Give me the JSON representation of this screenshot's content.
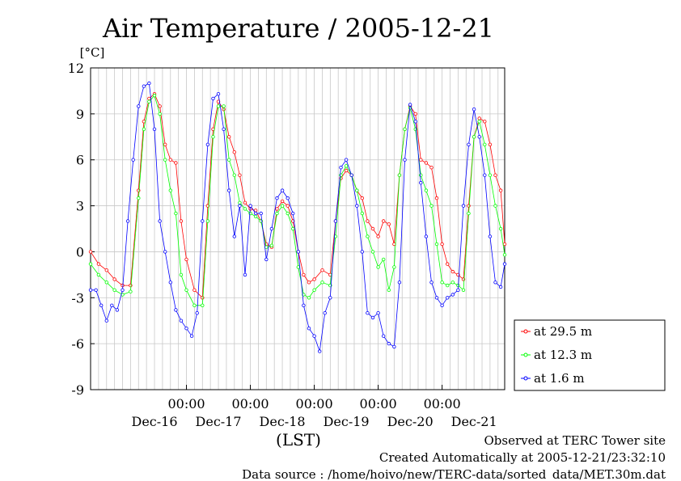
{
  "chart_data": {
    "type": "line",
    "title": "Air Temperature / 2005-12-21",
    "unit_label": "[°C]",
    "xlabel": "(LST)",
    "ylim": [
      -9,
      12
    ],
    "yticks": [
      -9,
      -6,
      -3,
      0,
      3,
      6,
      9,
      12
    ],
    "x_range": [
      "2005-12-15T12:00",
      "2005-12-21T23:30"
    ],
    "x_time_labels": [
      "00:00",
      "00:00",
      "00:00",
      "00:00",
      "00:00"
    ],
    "x_time_positions": [
      "2005-12-17T00:00",
      "2005-12-18T00:00",
      "2005-12-19T00:00",
      "2005-12-20T00:00",
      "2005-12-21T00:00"
    ],
    "x_day_labels": [
      "Dec-16",
      "Dec-17",
      "Dec-18",
      "Dec-19",
      "Dec-20",
      "Dec-21"
    ],
    "x_day_positions": [
      "2005-12-16T12:00",
      "2005-12-17T12:00",
      "2005-12-18T12:00",
      "2005-12-19T12:00",
      "2005-12-20T12:00",
      "2005-12-21T12:00"
    ],
    "grid": true,
    "legend_position": "right",
    "series": [
      {
        "name": "at 29.5 m",
        "color": "#ff0000",
        "x": [
          "2005-12-15T12:00",
          "2005-12-15T15:00",
          "2005-12-15T18:00",
          "2005-12-15T21:00",
          "2005-12-16T00:00",
          "2005-12-16T03:00",
          "2005-12-16T06:00",
          "2005-12-16T08:00",
          "2005-12-16T10:00",
          "2005-12-16T12:00",
          "2005-12-16T14:00",
          "2005-12-16T16:00",
          "2005-12-16T18:00",
          "2005-12-16T20:00",
          "2005-12-16T22:00",
          "2005-12-17T00:00",
          "2005-12-17T03:00",
          "2005-12-17T06:00",
          "2005-12-17T08:00",
          "2005-12-17T10:00",
          "2005-12-17T12:00",
          "2005-12-17T14:00",
          "2005-12-17T16:00",
          "2005-12-17T18:00",
          "2005-12-17T20:00",
          "2005-12-17T22:00",
          "2005-12-18T00:00",
          "2005-12-18T02:00",
          "2005-12-18T04:00",
          "2005-12-18T06:00",
          "2005-12-18T08:00",
          "2005-12-18T10:00",
          "2005-12-18T12:00",
          "2005-12-18T14:00",
          "2005-12-18T16:00",
          "2005-12-18T18:00",
          "2005-12-18T20:00",
          "2005-12-18T22:00",
          "2005-12-19T00:00",
          "2005-12-19T03:00",
          "2005-12-19T06:00",
          "2005-12-19T08:00",
          "2005-12-19T10:00",
          "2005-12-19T12:00",
          "2005-12-19T14:00",
          "2005-12-19T16:00",
          "2005-12-19T18:00",
          "2005-12-19T20:00",
          "2005-12-19T22:00",
          "2005-12-20T00:00",
          "2005-12-20T02:00",
          "2005-12-20T04:00",
          "2005-12-20T06:00",
          "2005-12-20T08:00",
          "2005-12-20T10:00",
          "2005-12-20T12:00",
          "2005-12-20T14:00",
          "2005-12-20T16:00",
          "2005-12-20T18:00",
          "2005-12-20T20:00",
          "2005-12-20T22:00",
          "2005-12-21T00:00",
          "2005-12-21T02:00",
          "2005-12-21T04:00",
          "2005-12-21T06:00",
          "2005-12-21T08:00",
          "2005-12-21T10:00",
          "2005-12-21T12:00",
          "2005-12-21T14:00",
          "2005-12-21T16:00",
          "2005-12-21T18:00",
          "2005-12-21T20:00",
          "2005-12-21T22:00",
          "2005-12-21T23:30"
        ],
        "y": [
          0.0,
          -0.8,
          -1.2,
          -1.8,
          -2.2,
          -2.2,
          4.0,
          8.5,
          10.0,
          10.3,
          9.5,
          7.0,
          6.0,
          5.8,
          2.0,
          -0.5,
          -2.5,
          -3.0,
          3.0,
          8.0,
          9.8,
          9.3,
          7.5,
          6.5,
          5.0,
          3.2,
          2.8,
          2.7,
          2.0,
          0.5,
          0.3,
          2.8,
          3.3,
          3.0,
          2.0,
          0.0,
          -1.5,
          -2.0,
          -1.8,
          -1.2,
          -1.5,
          2.0,
          4.8,
          5.3,
          5.0,
          4.0,
          3.5,
          2.0,
          1.5,
          1.0,
          2.0,
          1.8,
          0.5,
          5.0,
          8.0,
          9.5,
          9.0,
          6.0,
          5.8,
          5.5,
          3.5,
          0.5,
          -0.8,
          -1.3,
          -1.5,
          -1.8,
          3.0,
          7.5,
          8.7,
          8.5,
          7.0,
          5.0,
          4.0,
          0.5
        ]
      },
      {
        "name": "at 12.3 m",
        "color": "#00ff00",
        "x": [
          "2005-12-15T12:00",
          "2005-12-15T15:00",
          "2005-12-15T18:00",
          "2005-12-15T21:00",
          "2005-12-16T00:00",
          "2005-12-16T03:00",
          "2005-12-16T06:00",
          "2005-12-16T08:00",
          "2005-12-16T10:00",
          "2005-12-16T12:00",
          "2005-12-16T14:00",
          "2005-12-16T16:00",
          "2005-12-16T18:00",
          "2005-12-16T20:00",
          "2005-12-16T22:00",
          "2005-12-17T00:00",
          "2005-12-17T03:00",
          "2005-12-17T06:00",
          "2005-12-17T08:00",
          "2005-12-17T10:00",
          "2005-12-17T12:00",
          "2005-12-17T14:00",
          "2005-12-17T16:00",
          "2005-12-17T18:00",
          "2005-12-17T20:00",
          "2005-12-17T22:00",
          "2005-12-18T00:00",
          "2005-12-18T02:00",
          "2005-12-18T04:00",
          "2005-12-18T06:00",
          "2005-12-18T08:00",
          "2005-12-18T10:00",
          "2005-12-18T12:00",
          "2005-12-18T14:00",
          "2005-12-18T16:00",
          "2005-12-18T18:00",
          "2005-12-18T20:00",
          "2005-12-18T22:00",
          "2005-12-19T00:00",
          "2005-12-19T03:00",
          "2005-12-19T06:00",
          "2005-12-19T08:00",
          "2005-12-19T10:00",
          "2005-12-19T12:00",
          "2005-12-19T14:00",
          "2005-12-19T16:00",
          "2005-12-19T18:00",
          "2005-12-19T20:00",
          "2005-12-19T22:00",
          "2005-12-20T00:00",
          "2005-12-20T02:00",
          "2005-12-20T04:00",
          "2005-12-20T06:00",
          "2005-12-20T08:00",
          "2005-12-20T10:00",
          "2005-12-20T12:00",
          "2005-12-20T14:00",
          "2005-12-20T16:00",
          "2005-12-20T18:00",
          "2005-12-20T20:00",
          "2005-12-20T22:00",
          "2005-12-21T00:00",
          "2005-12-21T02:00",
          "2005-12-21T04:00",
          "2005-12-21T06:00",
          "2005-12-21T08:00",
          "2005-12-21T10:00",
          "2005-12-21T12:00",
          "2005-12-21T14:00",
          "2005-12-21T16:00",
          "2005-12-21T18:00",
          "2005-12-21T20:00",
          "2005-12-21T22:00",
          "2005-12-21T23:30"
        ],
        "y": [
          -0.8,
          -1.5,
          -2.0,
          -2.5,
          -2.8,
          -2.6,
          3.5,
          8.0,
          9.8,
          10.2,
          9.0,
          6.0,
          4.0,
          2.5,
          -1.5,
          -2.5,
          -3.5,
          -3.5,
          2.0,
          7.5,
          9.5,
          9.5,
          6.0,
          5.0,
          3.2,
          2.8,
          2.5,
          2.3,
          2.0,
          0.3,
          0.4,
          2.5,
          3.0,
          2.5,
          1.5,
          -1.0,
          -2.8,
          -3.0,
          -2.5,
          -2.0,
          -2.2,
          1.0,
          5.0,
          5.6,
          5.0,
          4.0,
          2.5,
          1.0,
          0.0,
          -1.0,
          -0.5,
          -2.5,
          -1.0,
          5.0,
          8.0,
          9.4,
          8.0,
          5.0,
          4.0,
          3.0,
          0.5,
          -2.0,
          -2.2,
          -2.0,
          -2.2,
          -2.5,
          2.5,
          7.5,
          8.5,
          7.0,
          5.0,
          3.0,
          1.5,
          -0.2
        ]
      },
      {
        "name": "at 1.6 m",
        "color": "#0000ff",
        "x": [
          "2005-12-15T12:00",
          "2005-12-15T14:00",
          "2005-12-15T16:00",
          "2005-12-15T18:00",
          "2005-12-15T20:00",
          "2005-12-15T22:00",
          "2005-12-16T00:00",
          "2005-12-16T02:00",
          "2005-12-16T04:00",
          "2005-12-16T06:00",
          "2005-12-16T08:00",
          "2005-12-16T10:00",
          "2005-12-16T12:00",
          "2005-12-16T14:00",
          "2005-12-16T16:00",
          "2005-12-16T18:00",
          "2005-12-16T20:00",
          "2005-12-16T22:00",
          "2005-12-17T00:00",
          "2005-12-17T02:00",
          "2005-12-17T04:00",
          "2005-12-17T06:00",
          "2005-12-17T08:00",
          "2005-12-17T10:00",
          "2005-12-17T12:00",
          "2005-12-17T14:00",
          "2005-12-17T16:00",
          "2005-12-17T18:00",
          "2005-12-17T20:00",
          "2005-12-17T22:00",
          "2005-12-18T00:00",
          "2005-12-18T02:00",
          "2005-12-18T04:00",
          "2005-12-18T06:00",
          "2005-12-18T08:00",
          "2005-12-18T10:00",
          "2005-12-18T12:00",
          "2005-12-18T14:00",
          "2005-12-18T16:00",
          "2005-12-18T18:00",
          "2005-12-18T20:00",
          "2005-12-18T22:00",
          "2005-12-19T00:00",
          "2005-12-19T02:00",
          "2005-12-19T04:00",
          "2005-12-19T06:00",
          "2005-12-19T08:00",
          "2005-12-19T10:00",
          "2005-12-19T12:00",
          "2005-12-19T14:00",
          "2005-12-19T16:00",
          "2005-12-19T18:00",
          "2005-12-19T20:00",
          "2005-12-19T22:00",
          "2005-12-20T00:00",
          "2005-12-20T02:00",
          "2005-12-20T04:00",
          "2005-12-20T06:00",
          "2005-12-20T08:00",
          "2005-12-20T10:00",
          "2005-12-20T12:00",
          "2005-12-20T14:00",
          "2005-12-20T16:00",
          "2005-12-20T18:00",
          "2005-12-20T20:00",
          "2005-12-20T22:00",
          "2005-12-21T00:00",
          "2005-12-21T02:00",
          "2005-12-21T04:00",
          "2005-12-21T06:00",
          "2005-12-21T08:00",
          "2005-12-21T10:00",
          "2005-12-21T12:00",
          "2005-12-21T14:00",
          "2005-12-21T16:00",
          "2005-12-21T18:00",
          "2005-12-21T20:00",
          "2005-12-21T22:00",
          "2005-12-21T23:30"
        ],
        "y": [
          -2.5,
          -2.5,
          -3.5,
          -4.5,
          -3.5,
          -3.8,
          -2.5,
          2.0,
          6.0,
          9.5,
          10.8,
          11.0,
          8.0,
          2.0,
          0.0,
          -2.0,
          -3.8,
          -4.5,
          -5.0,
          -5.5,
          -4.0,
          2.0,
          7.0,
          10.0,
          10.3,
          8.0,
          4.0,
          1.0,
          3.0,
          -1.5,
          3.0,
          2.5,
          2.5,
          -0.5,
          1.5,
          3.5,
          4.0,
          3.5,
          2.5,
          0.0,
          -3.5,
          -5.0,
          -5.5,
          -6.5,
          -4.0,
          -3.0,
          2.0,
          5.5,
          6.0,
          5.0,
          3.0,
          0.0,
          -4.0,
          -4.3,
          -4.0,
          -5.5,
          -6.0,
          -6.2,
          -2.0,
          6.0,
          9.6,
          8.5,
          4.5,
          1.0,
          -2.0,
          -3.0,
          -3.5,
          -3.0,
          -2.8,
          -2.5,
          3.0,
          7.0,
          9.3,
          7.5,
          5.0,
          1.0,
          -2.0,
          -2.3,
          -0.8
        ]
      }
    ]
  },
  "footer": {
    "line1": "Observed at TERC Tower site",
    "line2": "Created Automatically at 2005-12-21/23:32:10",
    "line3": "Data source : /home/hoivo/new/TERC-data/sorted_data/MET.30m.dat"
  }
}
